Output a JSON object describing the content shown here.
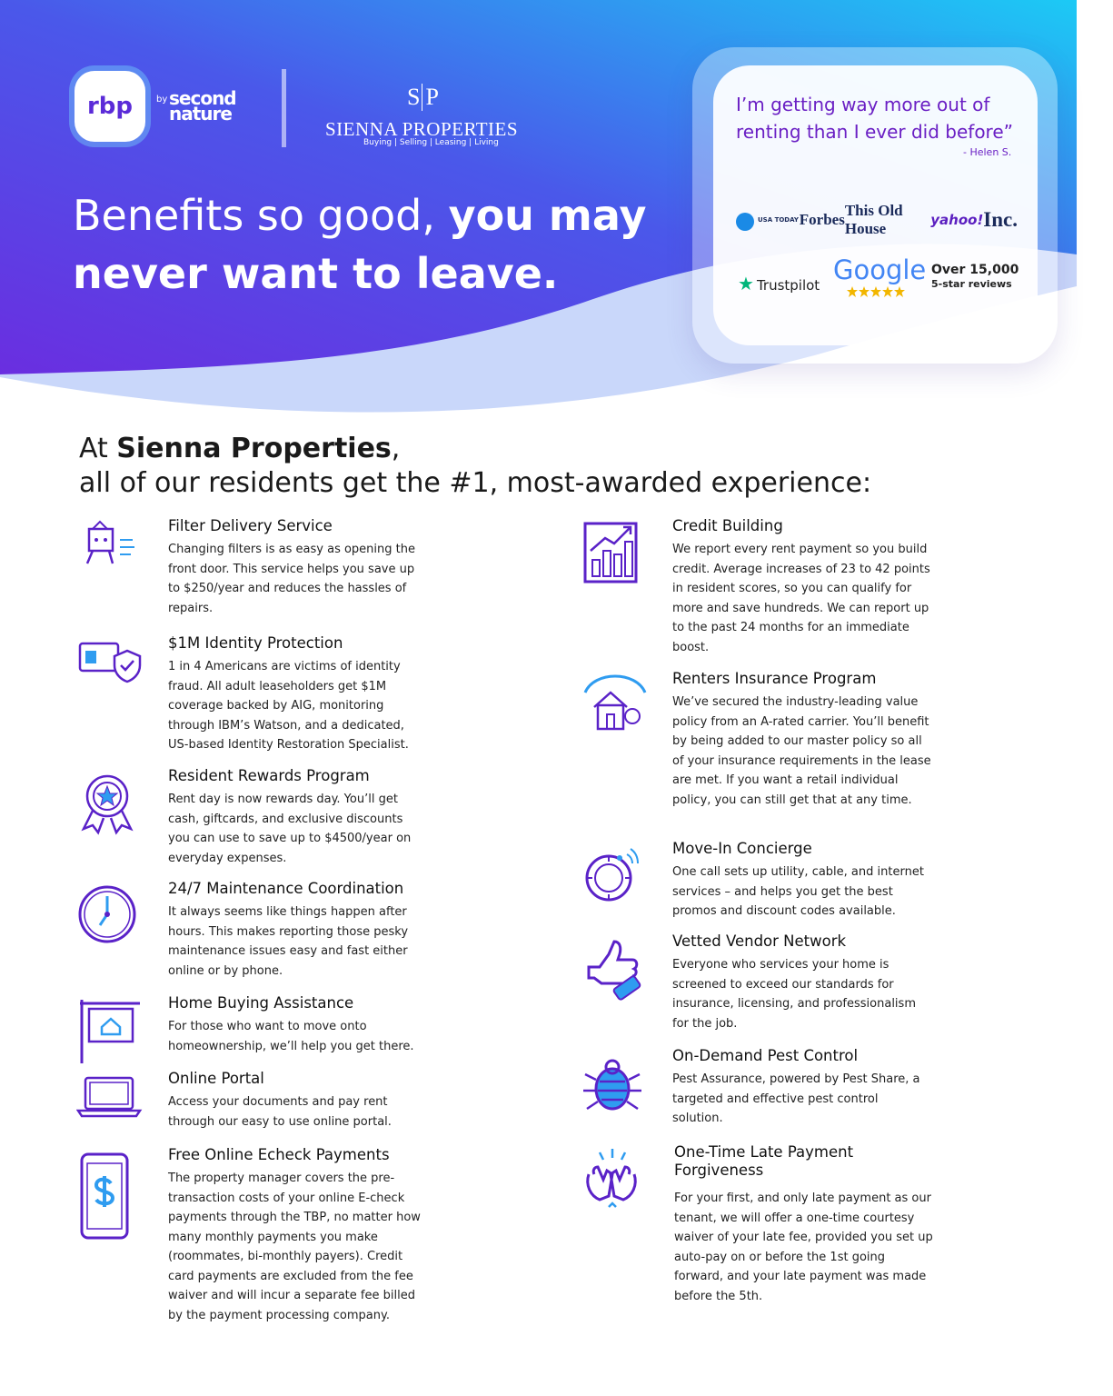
{
  "header": {
    "rbp_logo": "rbp",
    "by": "by",
    "brand_line1": "second",
    "brand_line2": "nature",
    "partner_monogram": [
      "S",
      "P"
    ],
    "partner_name": "SIENNA PROPERTIES",
    "partner_tagline": "Buying | Selling | Leasing | Living"
  },
  "headline": {
    "light": "Benefits so good, ",
    "bold_inline": "you may",
    "bold_line2": "never want to leave."
  },
  "testimonial": {
    "quote": "I’m getting way more out of renting than I ever did before”",
    "author": "- Helen S."
  },
  "press": [
    "USA TODAY",
    "Forbes",
    "This Old House",
    "yahoo!",
    "Inc."
  ],
  "reviews": {
    "trustpilot": "Trustpilot",
    "google": "Google",
    "count": "Over 15,000",
    "count_label": "5-star reviews"
  },
  "intro": {
    "prefix": "At ",
    "company": "Sienna Properties",
    "suffix": ",",
    "line2": "all of our residents get the #1, most-awarded experience:"
  },
  "benefits": {
    "left": [
      {
        "title": "Filter Delivery Service",
        "text": "Changing filters is as easy as opening the front door. This service helps you save up to $250/year and reduces the hassles of repairs."
      },
      {
        "title": "$1M Identity Protection",
        "text": "1 in 4 Americans are victims of identity fraud. All adult leaseholders get $1M coverage backed by AIG, monitoring through IBM’s Watson, and a dedicated, US-based Identity Restoration Specialist."
      },
      {
        "title": "Resident Rewards Program",
        "text": "Rent day is now rewards day. You’ll get cash, giftcards, and exclusive discounts you can use to save up to $4500/year on everyday expenses."
      },
      {
        "title": "24/7 Maintenance Coordination",
        "text": "It always seems like things happen after hours. This makes reporting those pesky maintenance issues easy and fast either online or by phone."
      },
      {
        "title": "Home Buying Assistance",
        "text": "For those who want to move onto homeownership, we’ll help you get there."
      },
      {
        "title": "Online Portal",
        "text": "Access your documents and pay rent through our easy to use online portal."
      },
      {
        "title": "Free Online Echeck Payments",
        "text": "The property manager covers the pre-transaction costs of your online E-check payments through the TBP, no matter how many monthly payments you make (roommates, bi-monthly payers). Credit card payments are excluded from the fee waiver and will incur a separate fee billed by the payment processing company."
      }
    ],
    "right": [
      {
        "title": "Credit Building",
        "text": "We report every rent payment so you build credit. Average increases of 23 to 42 points in resident scores, so you can qualify for more and save hundreds. We can report up to the past 24 months for an immediate boost."
      },
      {
        "title": "Renters Insurance Program",
        "text": "We’ve secured the industry-leading value policy from an A-rated carrier. You’ll benefit by being added to our master policy so all of your insurance requirements in the lease are met. If you want a retail individual policy, you can still get that at any time."
      },
      {
        "title": "Move-In Concierge",
        "text": "One call sets up utility, cable, and internet services – and helps you get the best promos and discount codes available."
      },
      {
        "title": "Vetted Vendor Network",
        "text": "Everyone who services your home is screened to exceed our standards for insurance, licensing, and professionalism for the job."
      },
      {
        "title": "On-Demand Pest Control",
        "text": "Pest Assurance, powered by Pest Share, a targeted and effective pest control solution."
      },
      {
        "title": "One-Time Late Payment Forgiveness",
        "text": "For your first, and only late payment as our tenant, we will offer a one-time courtesy waiver of your late fee, provided you set up auto-pay on or before the 1st going forward, and your late payment was made before the 5th."
      }
    ]
  }
}
